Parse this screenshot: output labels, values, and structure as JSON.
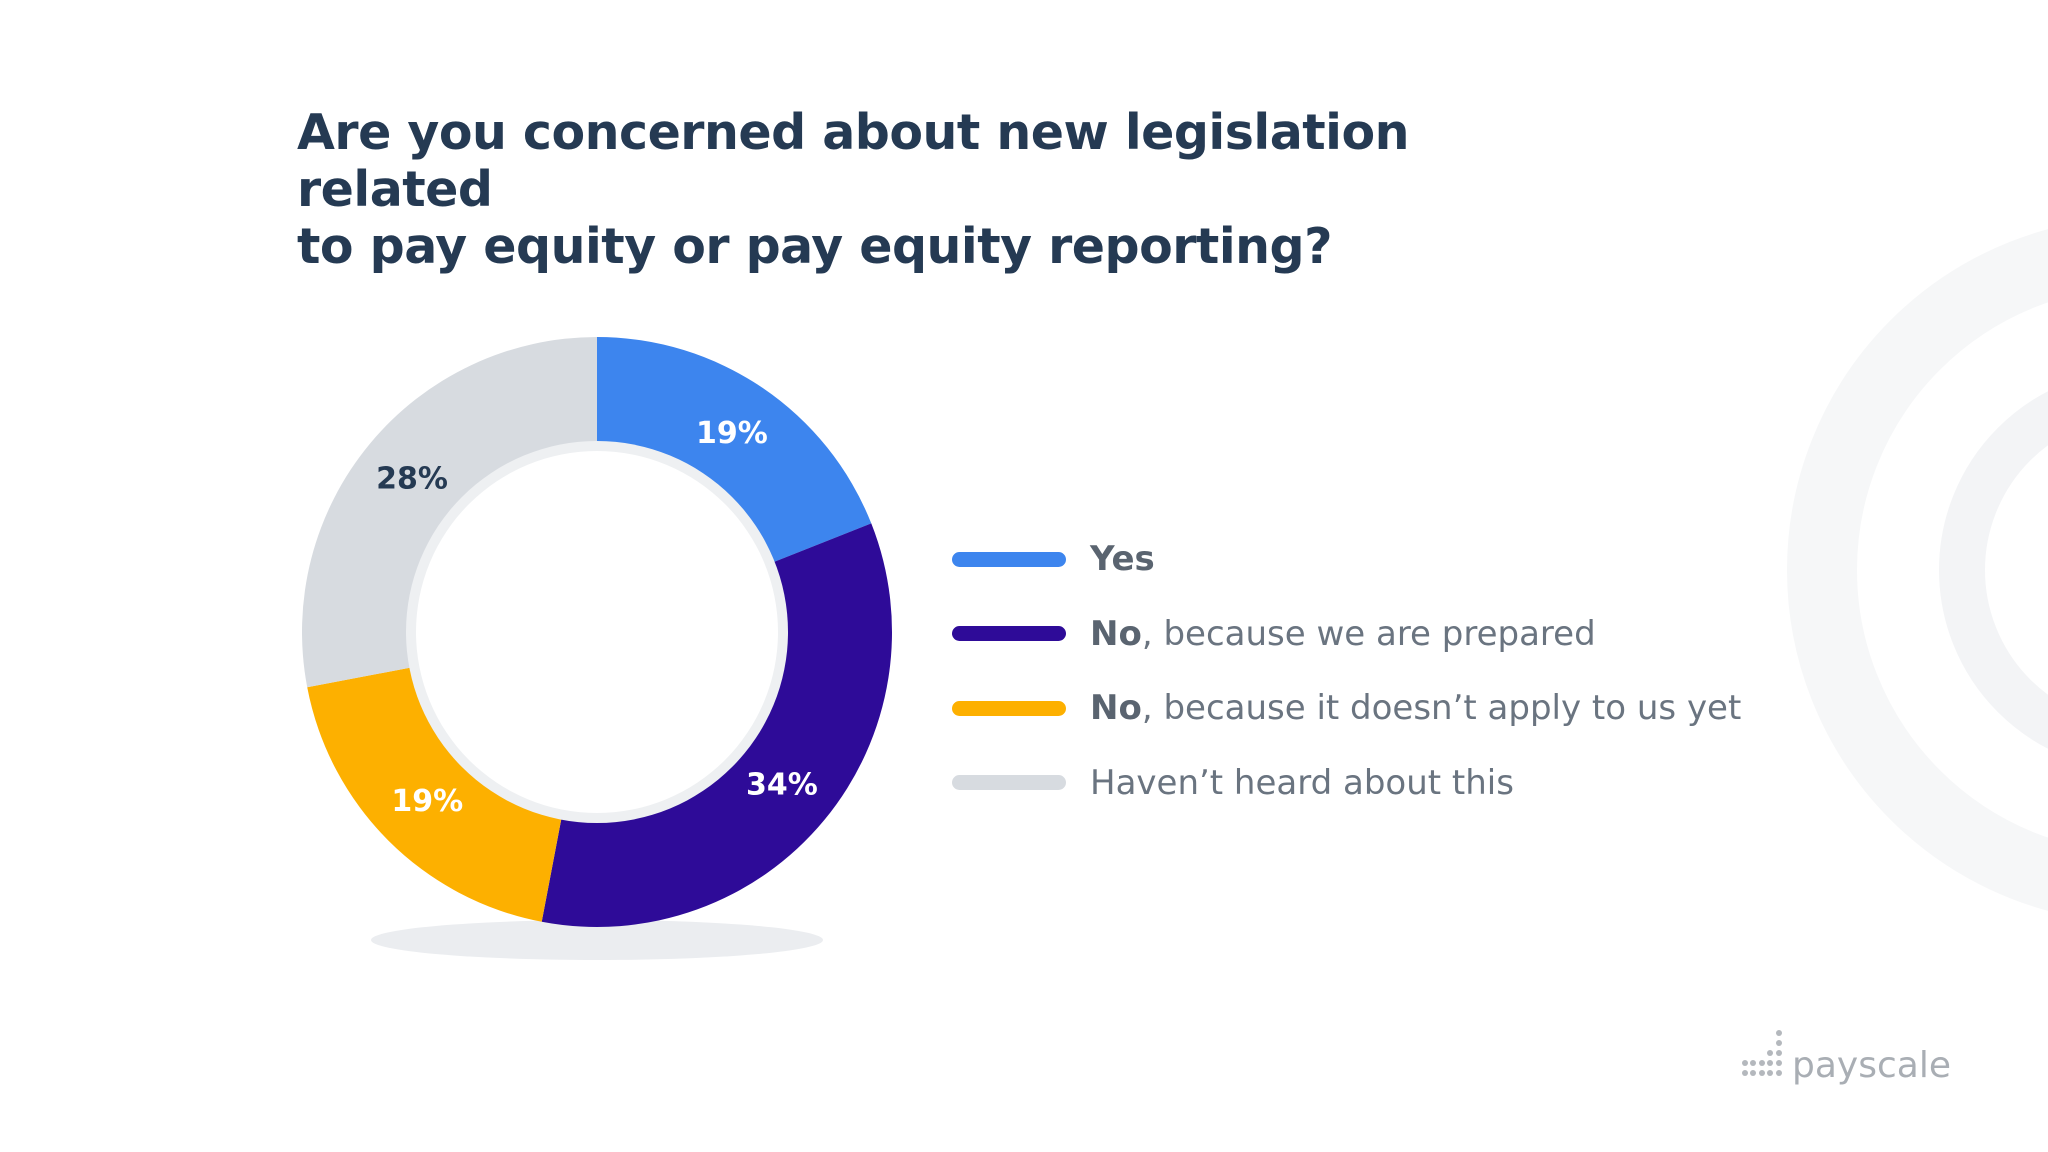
{
  "title_lines": [
    "Are you concerned about new legislation related",
    "to pay equity or pay equity reporting?"
  ],
  "chart_data": {
    "type": "pie",
    "title": "Are you concerned about new legislation related to pay equity or pay equity reporting?",
    "categories": [
      "Yes",
      "No, because we are prepared",
      "No, because it doesn’t apply to us yet",
      "Haven’t heard about this"
    ],
    "values": [
      19,
      34,
      19,
      28
    ],
    "value_labels": [
      "19%",
      "34%",
      "19%",
      "28%"
    ],
    "colors": [
      "#3d85ee",
      "#2e0b98",
      "#fdb000",
      "#d7dbe0"
    ],
    "label_colors": [
      "#ffffff",
      "#ffffff",
      "#ffffff",
      "#253a53"
    ],
    "legend_position": "right",
    "style": "donut"
  },
  "legend": [
    {
      "strong": "Yes",
      "rest": ""
    },
    {
      "strong": "No",
      "rest": ", because we are prepared"
    },
    {
      "strong": "No",
      "rest": ", because it doesn’t apply to us yet"
    },
    {
      "strong": "",
      "rest": "Haven’t heard about this"
    }
  ],
  "brand": {
    "logo_text": "payscale"
  }
}
